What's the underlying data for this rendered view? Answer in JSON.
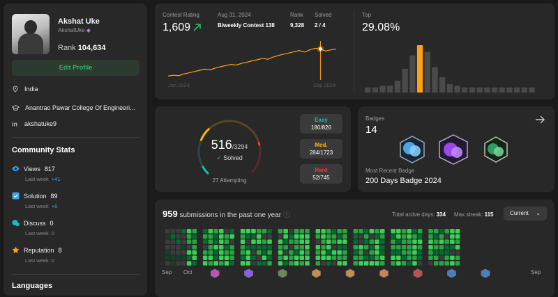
{
  "profile": {
    "name": "Akshat Uke",
    "username": "AkshatUke",
    "rank_label": "Rank",
    "rank": "104,634",
    "edit_label": "Edit Profile",
    "location": "India",
    "school": "Anantrao Pawar College Of Engineeri...",
    "linkedin": "akshatuke9"
  },
  "community": {
    "title": "Community Stats",
    "items": [
      {
        "label": "Views",
        "value": "817",
        "sub": "Last week",
        "delta": "+41"
      },
      {
        "label": "Solution",
        "value": "89",
        "sub": "Last week",
        "delta": "+6"
      },
      {
        "label": "Discuss",
        "value": "0",
        "sub": "Last week",
        "delta": "0"
      },
      {
        "label": "Reputation",
        "value": "8",
        "sub": "Last week",
        "delta": "0"
      }
    ]
  },
  "languages_title": "Languages",
  "contest": {
    "rating_label": "Contest Rating",
    "rating": "1,609",
    "date": "Aug 31, 2024",
    "contest_name": "Biweekly Contest 138",
    "rank_label": "Rank",
    "rank": "9,328",
    "solved_label": "Solved",
    "solved": "2 / 4",
    "axis_start": "Jan 2024",
    "axis_end": "Sep 2024",
    "top_label": "Top",
    "top_value": "29.08%",
    "rating_series": [
      1488,
      1492,
      1490,
      1497,
      1503,
      1508,
      1514,
      1519,
      1516,
      1524,
      1530,
      1535,
      1540,
      1537,
      1545,
      1550,
      1556,
      1561,
      1567,
      1563,
      1573,
      1580,
      1586,
      1591,
      1597,
      1602,
      1595,
      1605,
      1612,
      1609,
      1600,
      1605,
      1609
    ],
    "histogram": [
      3,
      3,
      4,
      4,
      7,
      14,
      22,
      28,
      24,
      15,
      9,
      5,
      4,
      3,
      3,
      3,
      3,
      3,
      3,
      3,
      3,
      3,
      3
    ],
    "histogram_highlight": 7,
    "accent": "#ffa116"
  },
  "solved": {
    "count": "516",
    "total": "/3294",
    "solved_label": "Solved",
    "attempting": "27 Attempting",
    "easy": {
      "label": "Easy",
      "value": "180/826",
      "color": "#1cbaba"
    },
    "medium": {
      "label": "Med.",
      "value": "284/1723",
      "color": "#ffb700"
    },
    "hard": {
      "label": "Hard",
      "value": "52/745",
      "color": "#f63737"
    },
    "easy_fraction": 0.218,
    "medium_fraction": 0.165,
    "hard_fraction": 0.07
  },
  "badges": {
    "title": "Badges",
    "count": "14",
    "recent_label": "Most Recent Badge",
    "recent": "200 Days Badge 2024",
    "icons": [
      "badge-50-days-icon",
      "badge-100-days-icon",
      "badge-200-days-icon"
    ]
  },
  "submissions": {
    "count": "959",
    "label": "submissions in the past one year",
    "active_label": "Total active days:",
    "active": "334",
    "streak_label": "Max streak:",
    "streak": "115",
    "select": "Current",
    "months": [
      "Sep",
      "Oct",
      "Sep"
    ]
  }
}
